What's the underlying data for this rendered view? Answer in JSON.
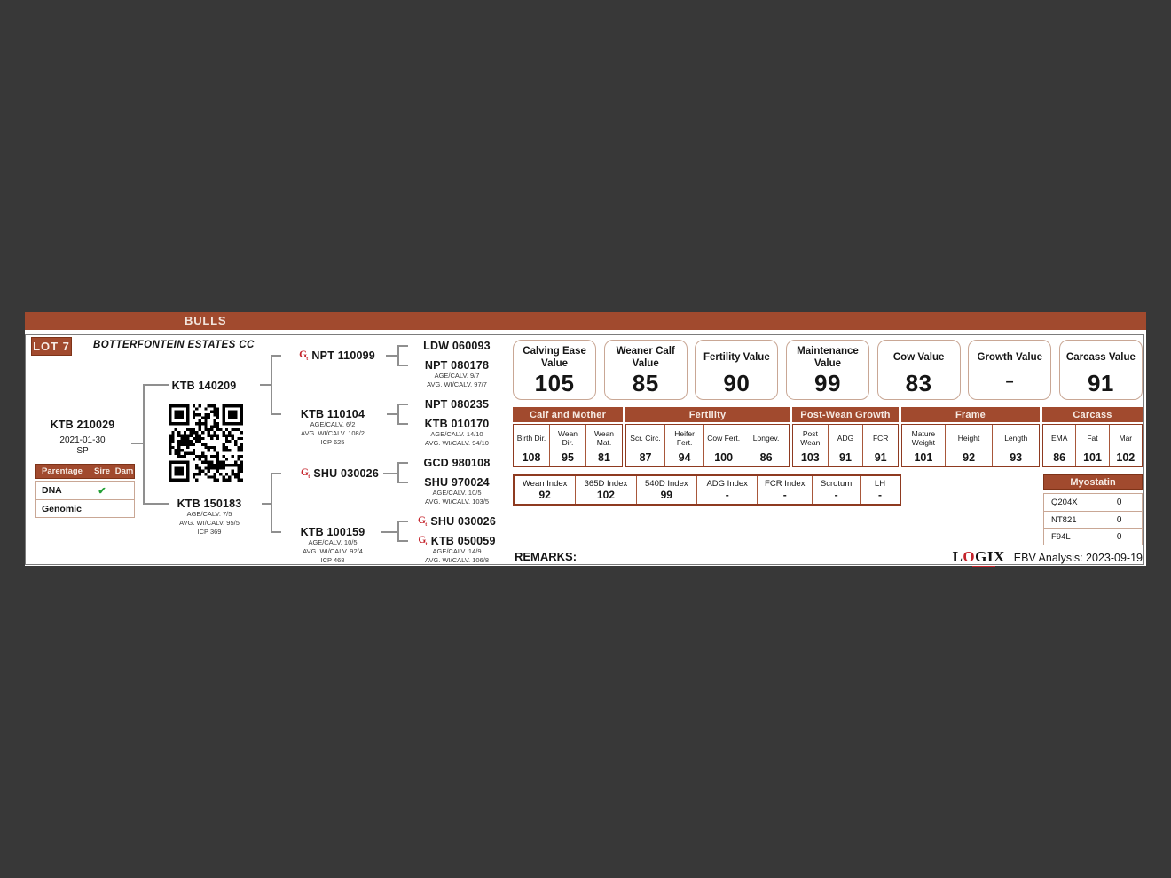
{
  "header": {
    "section_title": "BULLS",
    "lot_label": "LOT 7",
    "owner": "BOTTERFONTEIN ESTATES CC"
  },
  "icons": {
    "genomic": "G",
    "dna_check": "✔"
  },
  "animal": {
    "id": "KTB 210029",
    "birth_date": "2021-01-30",
    "status": "SP"
  },
  "parentage": {
    "headers": [
      "Parentage",
      "Sire",
      "Dam"
    ],
    "rows": [
      {
        "label": "DNA",
        "sire": "✔",
        "dam": ""
      },
      {
        "label": "Genomic",
        "sire": "",
        "dam": ""
      }
    ]
  },
  "pedigree": {
    "gen2": [
      {
        "id": "KTB 140209"
      },
      {
        "id": "KTB 150183",
        "stats": [
          "AGE/CALV. 7/5",
          "AVG. WI/CALV. 95/5",
          "ICP 369"
        ]
      }
    ],
    "gen3": [
      {
        "id": "NPT 110099"
      },
      {
        "id": "KTB 110104",
        "stats": [
          "AGE/CALV. 6/2",
          "AVG. WI/CALV. 108/2",
          "ICP 625"
        ]
      },
      {
        "id": "SHU 030026"
      },
      {
        "id": "KTB 100159",
        "stats": [
          "AGE/CALV. 10/5",
          "AVG. WI/CALV. 92/4",
          "ICP 468"
        ]
      }
    ],
    "gen4": [
      {
        "id": "LDW 060093"
      },
      {
        "id": "NPT 080178",
        "stats": [
          "AGE/CALV. 9/7",
          "AVG. WI/CALV. 97/7"
        ]
      },
      {
        "id": "NPT 080235"
      },
      {
        "id": "KTB 010170",
        "stats": [
          "AGE/CALV. 14/10",
          "AVG. WI/CALV. 94/10"
        ]
      },
      {
        "id": "GCD 980108"
      },
      {
        "id": "SHU 970024",
        "stats": [
          "AGE/CALV. 10/5",
          "AVG. WI/CALV. 103/5"
        ]
      },
      {
        "id": "SHU 030026"
      },
      {
        "id": "KTB 050059",
        "stats": [
          "AGE/CALV. 14/9",
          "AVG. WI/CALV. 106/8"
        ]
      }
    ]
  },
  "value_boxes": [
    {
      "label": "Calving Ease Value",
      "value": "105"
    },
    {
      "label": "Weaner Calf Value",
      "value": "85"
    },
    {
      "label": "Fertility Value",
      "value": "90"
    },
    {
      "label": "Maintenance Value",
      "value": "99"
    },
    {
      "label": "Cow Value",
      "value": "83"
    },
    {
      "label": "Growth Value",
      "value": "–"
    },
    {
      "label": "Carcass Value",
      "value": "91"
    }
  ],
  "ebv": {
    "groups": [
      {
        "name": "Calf and Mother",
        "cols": [
          {
            "label": "Birth Dir.",
            "value": "108"
          },
          {
            "label": "Wean Dir.",
            "value": "95"
          },
          {
            "label": "Wean Mat.",
            "value": "81"
          }
        ]
      },
      {
        "name": "Fertility",
        "cols": [
          {
            "label": "Scr. Circ.",
            "value": "87"
          },
          {
            "label": "Heifer Fert.",
            "value": "94"
          },
          {
            "label": "Cow Fert.",
            "value": "100"
          },
          {
            "label": "Longev.",
            "value": "86"
          }
        ]
      },
      {
        "name": "Post-Wean Growth",
        "cols": [
          {
            "label": "Post Wean",
            "value": "103"
          },
          {
            "label": "ADG",
            "value": "91"
          },
          {
            "label": "FCR",
            "value": "91"
          }
        ]
      },
      {
        "name": "Frame",
        "cols": [
          {
            "label": "Mature Weight",
            "value": "101"
          },
          {
            "label": "Height",
            "value": "92"
          },
          {
            "label": "Length",
            "value": "93"
          }
        ]
      },
      {
        "name": "Carcass",
        "cols": [
          {
            "label": "EMA",
            "value": "86"
          },
          {
            "label": "Fat",
            "value": "101"
          },
          {
            "label": "Mar",
            "value": "102"
          }
        ]
      }
    ]
  },
  "indexes": [
    {
      "label": "Wean Index",
      "value": "92"
    },
    {
      "label": "365D Index",
      "value": "102"
    },
    {
      "label": "540D Index",
      "value": "99"
    },
    {
      "label": "ADG Index",
      "value": "-"
    },
    {
      "label": "FCR Index",
      "value": "-"
    },
    {
      "label": "Scrotum",
      "value": "-"
    },
    {
      "label": "LH",
      "value": "-"
    }
  ],
  "myostatin": {
    "title": "Myostatin",
    "rows": [
      {
        "gene": "Q204X",
        "value": "0"
      },
      {
        "gene": "NT821",
        "value": "0"
      },
      {
        "gene": "F94L",
        "value": "0"
      }
    ]
  },
  "footer": {
    "remarks_label": "REMARKS:",
    "logo_parts": [
      "L",
      "O",
      "GIX"
    ],
    "analysis_text": "EBV Analysis: 2023-09-19"
  },
  "colors": {
    "brand_brown": "#A14A2E",
    "border_brown": "#8E3A20",
    "tan_border": "#C9A795",
    "accent_red": "#C4232B",
    "check_green": "#23A036",
    "viewer_bg": "#383838"
  }
}
